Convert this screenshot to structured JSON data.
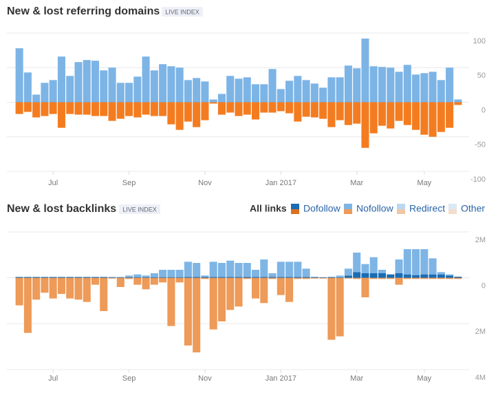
{
  "chart_data": [
    {
      "type": "bar",
      "title": "New & lost referring domains",
      "badge": "LIVE INDEX",
      "categories": [
        null,
        null,
        null,
        null,
        "Jul",
        null,
        null,
        null,
        null,
        null,
        null,
        null,
        null,
        "Sep",
        null,
        null,
        null,
        null,
        null,
        null,
        null,
        null,
        "Nov",
        null,
        null,
        null,
        null,
        null,
        null,
        null,
        null,
        "Jan 2017",
        null,
        null,
        null,
        null,
        null,
        null,
        null,
        null,
        "Mar",
        null,
        null,
        null,
        null,
        null,
        null,
        null,
        "May",
        null,
        null,
        null,
        null
      ],
      "series": [
        {
          "color": "#7db4e6",
          "lost_color": "#f47c20",
          "values": [
            78,
            43,
            11,
            28,
            32,
            66,
            38,
            58,
            61,
            60,
            46,
            50,
            28,
            28,
            37,
            66,
            46,
            55,
            52,
            50,
            32,
            35,
            30,
            4,
            12,
            38,
            34,
            36,
            26,
            26,
            48,
            19,
            31,
            38,
            32,
            27,
            21,
            36,
            36,
            53,
            49,
            92,
            52,
            51,
            50,
            44,
            54,
            40,
            42,
            44,
            32,
            50,
            4
          ],
          "lost_values": [
            -17,
            -14,
            -22,
            -20,
            -17,
            -37,
            -17,
            -18,
            -18,
            -20,
            -20,
            -27,
            -24,
            -20,
            -22,
            -18,
            -20,
            -20,
            -32,
            -40,
            -28,
            -36,
            -26,
            -2,
            -18,
            -15,
            -20,
            -18,
            -25,
            -15,
            -15,
            -13,
            -16,
            -28,
            -21,
            -22,
            -24,
            -36,
            -26,
            -33,
            -31,
            -66,
            -45,
            -34,
            -38,
            -27,
            -33,
            -40,
            -47,
            -50,
            -43,
            -37,
            -4
          ]
        }
      ],
      "ylim": [
        -100,
        100
      ],
      "yticks": [
        100,
        50,
        0,
        -50,
        -100
      ],
      "grid": true
    },
    {
      "type": "bar",
      "title": "New & lost backlinks",
      "badge": "LIVE INDEX",
      "legend_title": "All links",
      "categories": [
        null,
        null,
        null,
        null,
        "Jul",
        null,
        null,
        null,
        null,
        null,
        null,
        null,
        null,
        "Sep",
        null,
        null,
        null,
        null,
        null,
        null,
        null,
        null,
        "Nov",
        null,
        null,
        null,
        null,
        null,
        null,
        null,
        null,
        "Jan 2017",
        null,
        null,
        null,
        null,
        null,
        null,
        null,
        null,
        "Mar",
        null,
        null,
        null,
        null,
        null,
        null,
        null,
        "May",
        null,
        null,
        null,
        null
      ],
      "series": [
        {
          "name": "Dofollow",
          "color": "#1a6db4",
          "lost_color": "#d9711f",
          "values": [
            30000,
            30000,
            30000,
            30000,
            30000,
            30000,
            30000,
            30000,
            30000,
            30000,
            30000,
            30000,
            30000,
            30000,
            30000,
            30000,
            30000,
            30000,
            30000,
            30000,
            40000,
            40000,
            40000,
            40000,
            40000,
            40000,
            40000,
            40000,
            40000,
            40000,
            40000,
            40000,
            40000,
            40000,
            40000,
            20000,
            20000,
            20000,
            20000,
            100000,
            250000,
            200000,
            200000,
            200000,
            150000,
            200000,
            150000,
            120000,
            150000,
            150000,
            150000,
            100000,
            50000
          ],
          "lost_values": [
            -20000,
            -20000,
            -20000,
            -20000,
            -20000,
            -20000,
            -20000,
            -20000,
            -20000,
            -20000,
            -20000,
            -20000,
            -20000,
            -20000,
            -20000,
            -20000,
            -20000,
            -20000,
            -20000,
            -20000,
            -20000,
            -20000,
            -20000,
            -20000,
            -20000,
            -20000,
            -20000,
            -20000,
            -20000,
            -20000,
            -20000,
            -20000,
            -20000,
            -20000,
            -20000,
            -20000,
            -20000,
            -20000,
            -20000,
            -20000,
            -20000,
            -20000,
            -20000,
            -20000,
            -20000,
            -20000,
            -20000,
            -20000,
            -20000,
            -20000,
            -20000,
            -20000,
            -20000
          ]
        },
        {
          "name": "Nofollow",
          "color": "#7eb5e5",
          "lost_color": "#ee9a58",
          "values": [
            20000,
            20000,
            20000,
            20000,
            20000,
            20000,
            20000,
            20000,
            20000,
            20000,
            20000,
            0,
            0,
            70000,
            120000,
            70000,
            170000,
            320000,
            320000,
            320000,
            660000,
            610000,
            60000,
            660000,
            610000,
            710000,
            610000,
            610000,
            310000,
            760000,
            160000,
            660000,
            660000,
            660000,
            360000,
            30000,
            10000,
            30000,
            80000,
            300000,
            850000,
            400000,
            700000,
            150000,
            0,
            600000,
            1100000,
            1130000,
            1100000,
            700000,
            100000,
            50000,
            0
          ],
          "lost_values": [
            -1180000,
            -2380000,
            -930000,
            -630000,
            -880000,
            -680000,
            -880000,
            -930000,
            -1030000,
            -280000,
            -1430000,
            -10000,
            -380000,
            -30000,
            -280000,
            -480000,
            -280000,
            -180000,
            -2080000,
            -180000,
            -2930000,
            -3230000,
            -30000,
            -2230000,
            -1880000,
            -1380000,
            -1230000,
            -30000,
            -880000,
            -1080000,
            -30000,
            -730000,
            -1030000,
            -30000,
            -30000,
            -10000,
            -10000,
            -2680000,
            -2530000,
            -10000,
            -30000,
            -830000,
            -30000,
            -30000,
            -30000,
            -280000,
            -30000,
            -30000,
            -30000,
            -30000,
            -30000,
            -30000,
            -30000
          ]
        },
        {
          "name": "Redirect",
          "color": "#b9d8f2",
          "lost_color": "#f0c7a6"
        },
        {
          "name": "Other",
          "color": "#dce9f4",
          "lost_color": "#f3ddcc"
        }
      ],
      "ylim": [
        -4000000,
        2000000
      ],
      "yticks": [
        {
          "value": 2000000,
          "label": "2M"
        },
        0,
        {
          "value": -2000000,
          "label": "2M"
        },
        {
          "value": -4000000,
          "label": "4M"
        }
      ],
      "grid": true
    }
  ]
}
